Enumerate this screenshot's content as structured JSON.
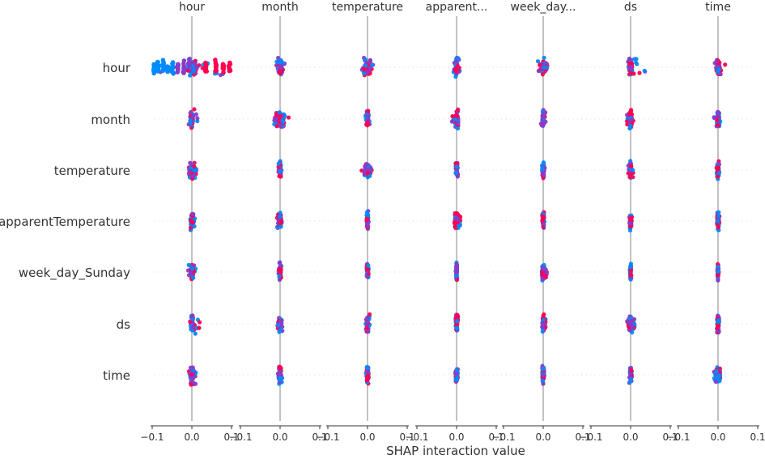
{
  "chart_data": {
    "type": "scatter",
    "title": "",
    "xlabel": "SHAP interaction value",
    "ylabel": "",
    "column_titles": [
      "hour",
      "month",
      "temperature",
      "apparent...",
      "week_day...",
      "ds",
      "time"
    ],
    "row_labels": [
      "hour",
      "month",
      "temperature",
      "apparentTemperature",
      "week_day_Sunday",
      "ds",
      "time"
    ],
    "xlim": [
      -0.1,
      0.1
    ],
    "x_ticks": [
      -0.1,
      0.0,
      0.1
    ],
    "x_tick_labels": [
      "−0.1",
      "0.0",
      "0.1"
    ],
    "grid": true,
    "legend": "none",
    "colors": {
      "low": "#008afb",
      "mid": "#8a3bc8",
      "high": "#ff0052",
      "zero_line": "#999999",
      "grid": "#cccccc"
    },
    "cells": [
      [
        {
          "row": "hour",
          "col": "hour",
          "min": -0.1,
          "max": 0.1,
          "dense_left": -0.01,
          "dense_right": 0.01
        },
        {
          "row": "hour",
          "col": "month",
          "min": -0.01,
          "max": 0.015,
          "dense_left": -0.005,
          "dense_right": 0.005
        },
        {
          "row": "hour",
          "col": "temperature",
          "min": -0.015,
          "max": 0.015,
          "dense_left": -0.008,
          "dense_right": 0.008
        },
        {
          "row": "hour",
          "col": "apparent...",
          "min": -0.008,
          "max": 0.008,
          "dense_left": -0.003,
          "dense_right": 0.003
        },
        {
          "row": "hour",
          "col": "week_day...",
          "min": -0.015,
          "max": 0.012,
          "dense_left": -0.004,
          "dense_right": 0.004
        },
        {
          "row": "hour",
          "col": "ds",
          "min": -0.01,
          "max": 0.04,
          "dense_left": -0.004,
          "dense_right": 0.004
        },
        {
          "row": "hour",
          "col": "time",
          "min": -0.008,
          "max": 0.02,
          "dense_left": -0.004,
          "dense_right": 0.004
        }
      ],
      [
        {
          "row": "month",
          "col": "hour",
          "min": -0.01,
          "max": 0.015,
          "dense_left": -0.004,
          "dense_right": 0.004
        },
        {
          "row": "month",
          "col": "month",
          "min": -0.015,
          "max": 0.025,
          "dense_left": -0.01,
          "dense_right": 0.01
        },
        {
          "row": "month",
          "col": "temperature",
          "min": -0.005,
          "max": 0.005,
          "dense_left": -0.002,
          "dense_right": 0.002
        },
        {
          "row": "month",
          "col": "apparent...",
          "min": -0.012,
          "max": 0.006,
          "dense_left": -0.004,
          "dense_right": 0.004
        },
        {
          "row": "month",
          "col": "week_day...",
          "min": -0.006,
          "max": 0.006,
          "dense_left": -0.002,
          "dense_right": 0.002
        },
        {
          "row": "month",
          "col": "ds",
          "min": -0.012,
          "max": 0.008,
          "dense_left": -0.003,
          "dense_right": 0.003
        },
        {
          "row": "month",
          "col": "time",
          "min": -0.012,
          "max": 0.008,
          "dense_left": -0.003,
          "dense_right": 0.003
        }
      ],
      [
        {
          "row": "temperature",
          "col": "hour",
          "min": -0.012,
          "max": 0.012,
          "dense_left": -0.008,
          "dense_right": 0.008
        },
        {
          "row": "temperature",
          "col": "month",
          "min": -0.005,
          "max": 0.005,
          "dense_left": -0.002,
          "dense_right": 0.002
        },
        {
          "row": "temperature",
          "col": "temperature",
          "min": -0.015,
          "max": 0.015,
          "dense_left": -0.008,
          "dense_right": 0.008
        },
        {
          "row": "temperature",
          "col": "apparent...",
          "min": -0.004,
          "max": 0.004,
          "dense_left": -0.002,
          "dense_right": 0.002
        },
        {
          "row": "temperature",
          "col": "week_day...",
          "min": -0.004,
          "max": 0.004,
          "dense_left": -0.002,
          "dense_right": 0.002
        },
        {
          "row": "temperature",
          "col": "ds",
          "min": -0.006,
          "max": 0.008,
          "dense_left": -0.002,
          "dense_right": 0.002
        },
        {
          "row": "temperature",
          "col": "time",
          "min": -0.004,
          "max": 0.004,
          "dense_left": -0.002,
          "dense_right": 0.002
        }
      ],
      [
        {
          "row": "apparentTemperature",
          "col": "hour",
          "min": -0.005,
          "max": 0.008,
          "dense_left": -0.003,
          "dense_right": 0.003
        },
        {
          "row": "apparentTemperature",
          "col": "month",
          "min": -0.008,
          "max": 0.006,
          "dense_left": -0.004,
          "dense_right": 0.004
        },
        {
          "row": "apparentTemperature",
          "col": "temperature",
          "min": -0.003,
          "max": 0.003,
          "dense_left": -0.002,
          "dense_right": 0.002
        },
        {
          "row": "apparentTemperature",
          "col": "apparent...",
          "min": -0.006,
          "max": 0.01,
          "dense_left": -0.004,
          "dense_right": 0.004
        },
        {
          "row": "apparentTemperature",
          "col": "week_day...",
          "min": -0.003,
          "max": 0.003,
          "dense_left": -0.002,
          "dense_right": 0.002
        },
        {
          "row": "apparentTemperature",
          "col": "ds",
          "min": -0.003,
          "max": 0.003,
          "dense_left": -0.002,
          "dense_right": 0.002
        },
        {
          "row": "apparentTemperature",
          "col": "time",
          "min": -0.003,
          "max": 0.004,
          "dense_left": -0.002,
          "dense_right": 0.002
        }
      ],
      [
        {
          "row": "week_day_Sunday",
          "col": "hour",
          "min": -0.01,
          "max": 0.01,
          "dense_left": -0.003,
          "dense_right": 0.003
        },
        {
          "row": "week_day_Sunday",
          "col": "month",
          "min": -0.004,
          "max": 0.004,
          "dense_left": -0.002,
          "dense_right": 0.002
        },
        {
          "row": "week_day_Sunday",
          "col": "temperature",
          "min": -0.004,
          "max": 0.004,
          "dense_left": -0.002,
          "dense_right": 0.002
        },
        {
          "row": "week_day_Sunday",
          "col": "apparent...",
          "min": -0.002,
          "max": 0.002,
          "dense_left": -0.001,
          "dense_right": 0.001
        },
        {
          "row": "week_day_Sunday",
          "col": "week_day...",
          "min": -0.004,
          "max": 0.01,
          "dense_left": -0.003,
          "dense_right": 0.003
        },
        {
          "row": "week_day_Sunday",
          "col": "ds",
          "min": -0.002,
          "max": 0.003,
          "dense_left": -0.001,
          "dense_right": 0.001
        },
        {
          "row": "week_day_Sunday",
          "col": "time",
          "min": -0.002,
          "max": 0.002,
          "dense_left": -0.001,
          "dense_right": 0.001
        }
      ],
      [
        {
          "row": "ds",
          "col": "hour",
          "min": -0.006,
          "max": 0.02,
          "dense_left": -0.003,
          "dense_right": 0.003
        },
        {
          "row": "ds",
          "col": "month",
          "min": -0.008,
          "max": 0.006,
          "dense_left": -0.003,
          "dense_right": 0.003
        },
        {
          "row": "ds",
          "col": "temperature",
          "min": -0.006,
          "max": 0.008,
          "dense_left": -0.002,
          "dense_right": 0.002
        },
        {
          "row": "ds",
          "col": "apparent...",
          "min": -0.003,
          "max": 0.004,
          "dense_left": -0.002,
          "dense_right": 0.002
        },
        {
          "row": "ds",
          "col": "week_day...",
          "min": -0.003,
          "max": 0.006,
          "dense_left": -0.002,
          "dense_right": 0.002
        },
        {
          "row": "ds",
          "col": "ds",
          "min": -0.01,
          "max": 0.01,
          "dense_left": -0.005,
          "dense_right": 0.005
        },
        {
          "row": "ds",
          "col": "time",
          "min": -0.003,
          "max": 0.003,
          "dense_left": -0.002,
          "dense_right": 0.002
        }
      ],
      [
        {
          "row": "time",
          "col": "hour",
          "min": -0.008,
          "max": 0.015,
          "dense_left": -0.004,
          "dense_right": 0.004
        },
        {
          "row": "time",
          "col": "month",
          "min": -0.006,
          "max": 0.006,
          "dense_left": -0.003,
          "dense_right": 0.003
        },
        {
          "row": "time",
          "col": "temperature",
          "min": -0.004,
          "max": 0.004,
          "dense_left": -0.002,
          "dense_right": 0.002
        },
        {
          "row": "time",
          "col": "apparent...",
          "min": -0.003,
          "max": 0.003,
          "dense_left": -0.002,
          "dense_right": 0.002
        },
        {
          "row": "time",
          "col": "week_day...",
          "min": -0.003,
          "max": 0.003,
          "dense_left": -0.002,
          "dense_right": 0.002
        },
        {
          "row": "time",
          "col": "ds",
          "min": -0.004,
          "max": 0.004,
          "dense_left": -0.002,
          "dense_right": 0.002
        },
        {
          "row": "time",
          "col": "time",
          "min": -0.01,
          "max": 0.006,
          "dense_left": -0.005,
          "dense_right": 0.005
        }
      ]
    ]
  }
}
